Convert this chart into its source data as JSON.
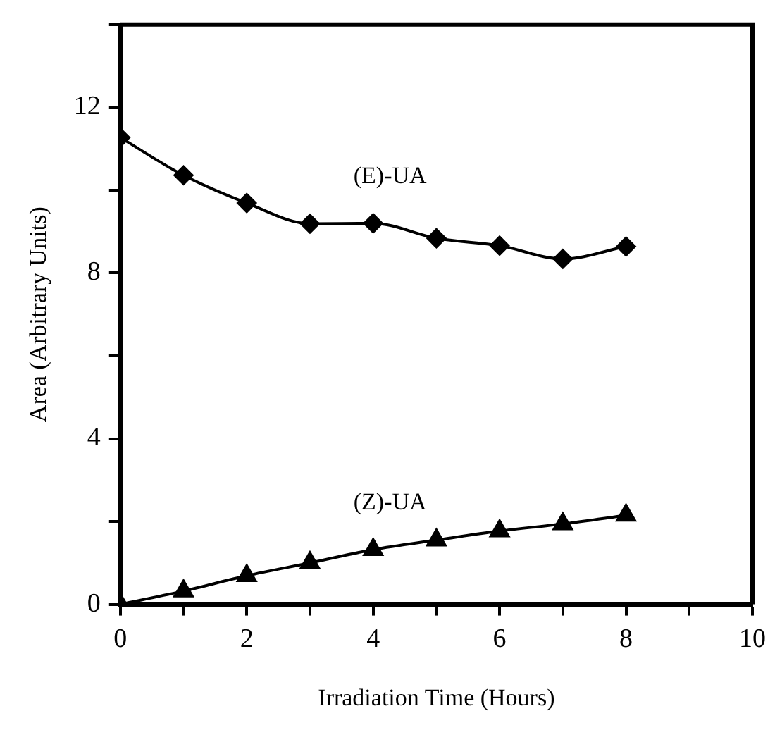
{
  "chart_data": {
    "type": "line",
    "xlabel": "Irradiation Time (Hours)",
    "ylabel": "Area (Arbitrary Units)",
    "x": [
      0,
      1,
      2,
      3,
      4,
      5,
      6,
      7,
      8
    ],
    "series": [
      {
        "name": "(E)-UA",
        "color": "#000000",
        "marker": "diamond",
        "values": [
          11.27,
          10.36,
          9.69,
          9.19,
          9.2,
          8.84,
          8.66,
          8.34,
          8.64
        ]
      },
      {
        "name": "(Z)-UA",
        "color": "#000000",
        "marker": "triangle",
        "values": [
          0,
          0.32,
          0.69,
          1.0,
          1.32,
          1.55,
          1.77,
          1.94,
          2.15
        ]
      }
    ],
    "xlim": [
      0,
      10
    ],
    "xticks": [
      0,
      {
        "value": 1,
        "label": null
      },
      2,
      {
        "value": 3,
        "label": null
      },
      4,
      {
        "value": 5,
        "label": null
      },
      6,
      {
        "value": 7,
        "label": null
      },
      8,
      {
        "value": 9,
        "label": null
      },
      10
    ],
    "ylim": [
      0,
      14
    ],
    "yticks": [
      0,
      {
        "value": 2,
        "label": null
      },
      4,
      {
        "value": 6,
        "label": null
      },
      8,
      {
        "value": 10,
        "label": null
      },
      12,
      {
        "value": 14,
        "label": null
      }
    ],
    "grid": false,
    "legend": false,
    "line_style": "solid"
  }
}
